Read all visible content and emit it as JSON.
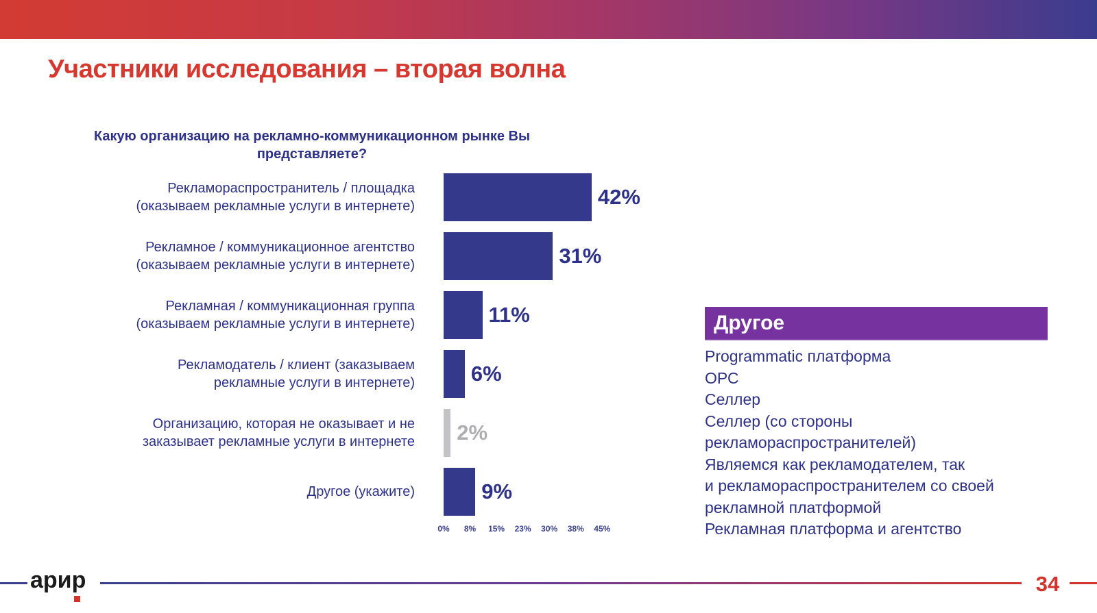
{
  "slide": {
    "title": "Участники исследования – вторая волна",
    "page_number": "34",
    "logo_text": "арир"
  },
  "chart_data": {
    "type": "bar",
    "orientation": "horizontal",
    "title": "Какую организацию на рекламно-коммуникационном рынке Вы представляете?",
    "title_lines": [
      "Какую организацию на рекламно-коммуникационном рынке Вы",
      "представляете?"
    ],
    "categories": [
      "Рекламораспространитель / площадка (оказываем рекламные услуги в интернете)",
      "Рекламное / коммуникационное агентство (оказываем рекламные услуги в интернете)",
      "Рекламная / коммуникационная группа (оказываем рекламные услуги в интернете)",
      "Рекламодатель / клиент (заказываем рекламные услуги в интернете)",
      "Организацию, которая не оказывает и не заказывает рекламные услуги в интернете",
      "Другое (укажите)"
    ],
    "categories_lines": [
      [
        "Рекламораспространитель / площадка",
        "(оказываем рекламные услуги в интернете)"
      ],
      [
        "Рекламное / коммуникационное агентство",
        "(оказываем рекламные услуги в интернете)"
      ],
      [
        "Рекламная / коммуникационная группа",
        "(оказываем рекламные услуги в интернете)"
      ],
      [
        "Рекламодатель / клиент (заказываем",
        "рекламные услуги в интернете)"
      ],
      [
        "Организацию, которая не оказывает и не",
        "заказывает рекламные услуги в интернете"
      ],
      [
        "Другое (укажите)"
      ]
    ],
    "values": [
      42,
      31,
      11,
      6,
      2,
      9
    ],
    "value_labels": [
      "42%",
      "31%",
      "11%",
      "6%",
      "2%",
      "9%"
    ],
    "unit": "%",
    "xlim": [
      0,
      45
    ],
    "x_tick_labels": [
      "0%",
      "8%",
      "15%",
      "23%",
      "30%",
      "38%",
      "45%"
    ],
    "muted_index": 4,
    "legend": "none",
    "grid": "off",
    "colors": {
      "bar": "#35398b",
      "bar_muted": "#c3c3c6",
      "value_label": "#2d3189",
      "value_label_muted": "#aeaeb2",
      "category_label": "#2d3189",
      "axis_label": "#3a3f8f"
    }
  },
  "other_panel": {
    "header": "Другое",
    "header_bg": "#76339f",
    "items_lines": [
      [
        "Programmatic платформа"
      ],
      [
        "ОРС"
      ],
      [
        "Селлер"
      ],
      [
        "Селлер (со стороны",
        "рекламораспространителей)"
      ],
      [
        "Являемся как рекламодателем, так",
        "и рекламораспространителем со своей",
        "рекламной платформой"
      ],
      [
        "Рекламная платформа и агентство"
      ]
    ]
  },
  "theme": {
    "title_color": "#d6382f",
    "topbar_gradient_left": "#d23b33",
    "topbar_gradient_right": "#3b3c8e",
    "page_number_color": "#d2342d"
  }
}
